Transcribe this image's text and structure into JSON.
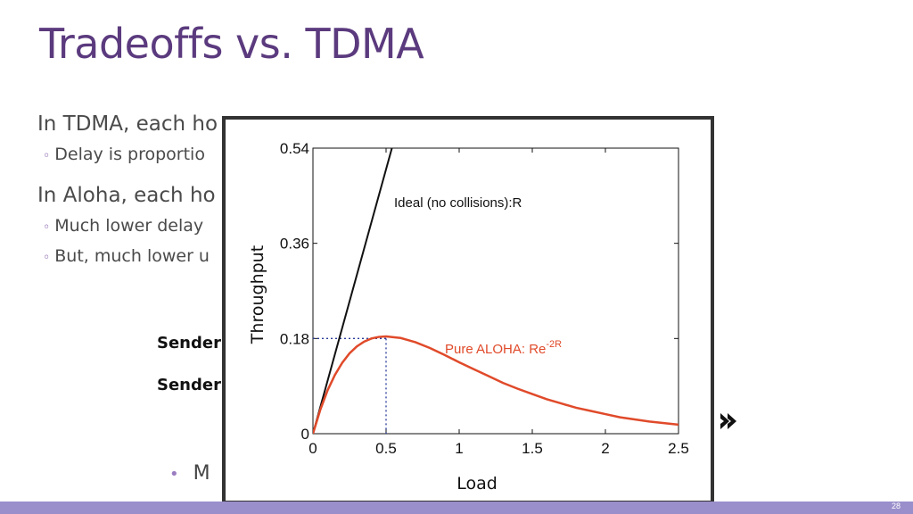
{
  "slide": {
    "title": "Tradeoffs vs. TDMA",
    "bullets": [
      {
        "text": "In TDMA, each ho",
        "sub": [
          "Delay is proportio"
        ]
      },
      {
        "text": "In Aloha, each ho",
        "sub": [
          "Much lower delay",
          "But, much lower u"
        ]
      }
    ],
    "senders": [
      "Sender",
      "Sender"
    ],
    "bottom_bullet": "M",
    "page_number": "28"
  },
  "colors": {
    "title": "#5b3a7e",
    "footer": "#9a8fcb",
    "ideal_line": "#111111",
    "aloha_curve": "#e04a2a",
    "guide_lines": "#2a3a9a"
  },
  "icons": [
    "double-arrow-right-icon"
  ],
  "chart_data": {
    "type": "line",
    "xlabel": "Load",
    "ylabel": "Throughput",
    "xlim": [
      0,
      2.5
    ],
    "ylim": [
      0,
      0.54
    ],
    "x_ticks": [
      "0",
      "0.5",
      "1",
      "1.5",
      "2",
      "2.5"
    ],
    "y_ticks": [
      "0",
      "0.18",
      "0.36",
      "0.54"
    ],
    "grid": false,
    "series": [
      {
        "name": "Ideal (no collisions):R",
        "x": [
          0,
          0.54
        ],
        "y": [
          0,
          0.54
        ]
      },
      {
        "name": "Pure ALOHA: Re",
        "superscript": "-2R",
        "x": [
          0,
          0.05,
          0.1,
          0.15,
          0.2,
          0.25,
          0.3,
          0.35,
          0.4,
          0.45,
          0.5,
          0.6,
          0.7,
          0.8,
          0.9,
          1.0,
          1.1,
          1.2,
          1.3,
          1.4,
          1.5,
          1.6,
          1.7,
          1.8,
          1.9,
          2.0,
          2.1,
          2.2,
          2.3,
          2.4,
          2.5
        ],
        "y": [
          0,
          0.045,
          0.082,
          0.111,
          0.134,
          0.152,
          0.165,
          0.174,
          0.18,
          0.183,
          0.184,
          0.181,
          0.173,
          0.162,
          0.149,
          0.135,
          0.122,
          0.109,
          0.096,
          0.085,
          0.075,
          0.065,
          0.057,
          0.049,
          0.043,
          0.037,
          0.031,
          0.027,
          0.023,
          0.02,
          0.017
        ]
      }
    ],
    "annotations": {
      "peak_x": 0.5,
      "peak_y": 0.18
    }
  }
}
